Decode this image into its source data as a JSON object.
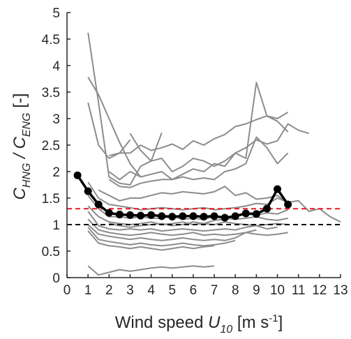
{
  "chart_data": {
    "type": "line",
    "title": "",
    "xlabel": {
      "main": "Wind speed ",
      "var": "U",
      "sub": "10",
      "unit": " [m s",
      "sup": "-1",
      "close": "]"
    },
    "ylabel": {
      "c1": "C",
      "s1": "HNG",
      "mid": " / C",
      "s2": "ENG",
      "unit": " [-]"
    },
    "xlim": [
      0,
      13
    ],
    "ylim": [
      0,
      5
    ],
    "xticks": [
      0,
      1,
      2,
      3,
      4,
      5,
      6,
      7,
      8,
      9,
      10,
      11,
      12,
      13
    ],
    "yticks": [
      0,
      0.5,
      1,
      1.5,
      2,
      2.5,
      3,
      3.5,
      4,
      4.5,
      5
    ],
    "ytick_labels": [
      "0",
      "0.5",
      "1",
      "1.5",
      "2",
      "2.5",
      "3",
      "3.5",
      "4",
      "4.5",
      "5"
    ],
    "grid": false,
    "legend": "none",
    "colors": {
      "individual": "#8c8c8c",
      "mean": "#000000",
      "ref_red": "#e8191f",
      "ref_black": "#000000",
      "axis": "#262626"
    },
    "reference_lines": [
      {
        "name": "",
        "y": 1.3,
        "style": "dashed",
        "color": "#e8191f"
      },
      {
        "name": "",
        "y": 1.0,
        "style": "dashed",
        "color": "#000000"
      }
    ],
    "mean_series": {
      "name": "",
      "x": [
        0.5,
        1,
        1.5,
        2,
        2.5,
        3,
        3.5,
        4,
        4.5,
        5,
        5.5,
        6,
        6.5,
        7,
        7.5,
        8,
        8.5,
        9,
        9.5,
        10,
        10.5
      ],
      "y": [
        1.93,
        1.63,
        1.38,
        1.22,
        1.19,
        1.18,
        1.17,
        1.18,
        1.16,
        1.15,
        1.16,
        1.16,
        1.15,
        1.16,
        1.13,
        1.16,
        1.21,
        1.2,
        1.3,
        1.67,
        1.38
      ]
    },
    "series": [
      {
        "x": [
          1,
          1.5,
          2,
          2.5,
          3,
          3.5,
          4,
          4.5
        ],
        "y": [
          4.62,
          3.3,
          1.9,
          1.78,
          1.75,
          2.1,
          2.2,
          2.73
        ]
      },
      {
        "x": [
          1,
          1.5,
          2,
          2.5,
          3,
          3.5
        ],
        "y": [
          3.78,
          3.45,
          3.0,
          2.55,
          2.15,
          1.9
        ]
      },
      {
        "x": [
          1,
          1.5,
          2,
          2.5,
          3
        ],
        "y": [
          3.3,
          2.5,
          2.25,
          2.35,
          2.6
        ]
      },
      {
        "x": [
          2,
          2.5,
          3,
          3.5,
          4,
          4.5,
          5,
          5.5,
          6,
          6.5,
          7,
          7.5,
          8,
          8.5,
          9,
          9.5,
          10,
          10.5
        ],
        "y": [
          2.3,
          2.35,
          2.35,
          2.5,
          2.4,
          2.45,
          2.52,
          2.42,
          2.58,
          2.5,
          2.62,
          2.7,
          2.85,
          2.9,
          2.98,
          3.05,
          2.95,
          2.75
        ]
      },
      {
        "x": [
          3,
          3.5,
          4,
          4.5,
          5,
          5.5,
          6,
          6.5,
          7,
          7.5,
          8,
          8.5,
          9,
          9.5,
          10,
          10.5,
          11,
          11.5
        ],
        "y": [
          2.72,
          2.4,
          2.2,
          2.25,
          2.0,
          2.1,
          2.25,
          2.2,
          2.1,
          2.2,
          2.35,
          2.45,
          2.6,
          2.52,
          2.58,
          2.9,
          2.78,
          2.72
        ]
      },
      {
        "x": [
          2,
          2.5,
          3,
          3.5,
          4,
          4.5,
          5,
          5.5,
          6,
          6.5,
          7,
          7.5,
          8,
          8.5,
          9,
          9.5,
          10,
          10.5
        ],
        "y": [
          2.0,
          1.85,
          2.0,
          1.9,
          1.95,
          2.0,
          1.85,
          1.95,
          2.05,
          2.0,
          2.15,
          2.1,
          2.35,
          2.25,
          3.68,
          3.05,
          3.0,
          3.12
        ]
      },
      {
        "x": [
          2,
          2.5,
          3,
          3.5,
          4,
          4.5,
          5,
          5.5,
          6,
          6.5,
          7,
          7.5,
          8,
          8.5,
          9,
          9.5,
          10,
          10.5
        ],
        "y": [
          1.85,
          1.72,
          1.7,
          1.78,
          1.82,
          1.85,
          1.85,
          1.9,
          1.85,
          1.88,
          1.85,
          2.0,
          2.05,
          2.15,
          2.65,
          2.45,
          2.15,
          2.35
        ]
      },
      {
        "x": [
          1.5,
          2,
          2.5,
          3,
          3.5,
          4,
          4.5,
          5,
          5.5,
          6,
          6.5,
          7,
          7.5,
          8,
          8.5,
          9,
          9.5,
          10,
          10.5
        ],
        "y": [
          1.65,
          1.55,
          1.45,
          1.5,
          1.5,
          1.55,
          1.6,
          1.58,
          1.62,
          1.6,
          1.58,
          1.62,
          1.72,
          1.55,
          1.6,
          1.48,
          1.5,
          1.55,
          1.4
        ]
      },
      {
        "x": [
          1,
          1.5,
          2,
          2.5,
          3,
          3.5,
          4,
          4.5,
          5,
          5.5,
          6,
          6.5,
          7,
          7.5,
          8,
          8.5,
          9,
          9.5,
          10,
          10.5,
          11,
          11.5,
          12,
          12.5,
          13
        ],
        "y": [
          1.8,
          1.5,
          1.38,
          1.35,
          1.32,
          1.28,
          1.3,
          1.32,
          1.3,
          1.28,
          1.3,
          1.32,
          1.28,
          1.3,
          1.32,
          1.35,
          1.4,
          1.38,
          1.5,
          1.42,
          1.45,
          1.25,
          1.3,
          1.15,
          1.05
        ]
      },
      {
        "x": [
          1,
          1.5,
          2,
          2.5,
          3,
          3.5,
          4,
          4.5,
          5,
          5.5,
          6,
          6.5,
          7,
          7.5,
          8,
          8.5,
          9,
          9.5,
          10,
          10.5
        ],
        "y": [
          1.55,
          1.3,
          1.15,
          1.15,
          1.12,
          1.15,
          1.12,
          1.12,
          1.15,
          1.1,
          1.12,
          1.1,
          1.15,
          1.12,
          1.1,
          1.12,
          1.15,
          1.1,
          1.08,
          1.12
        ]
      },
      {
        "x": [
          1,
          1.5,
          2,
          2.5,
          3,
          3.5,
          4,
          4.5,
          5,
          5.5,
          6,
          6.5,
          7,
          7.5,
          8,
          8.5,
          9,
          9.5,
          10,
          10.5
        ],
        "y": [
          1.35,
          1.15,
          1.05,
          1.02,
          1.0,
          1.02,
          1.05,
          1.0,
          1.02,
          1.05,
          1.0,
          1.02,
          1.0,
          1.05,
          1.02,
          1.0,
          0.98,
          1.0,
          1.02,
          1.0
        ]
      },
      {
        "x": [
          1,
          1.5,
          2,
          2.5,
          3,
          3.5,
          4,
          4.5,
          5,
          5.5,
          6,
          6.5,
          7,
          7.5,
          8,
          8.5,
          9,
          9.5,
          10
        ],
        "y": [
          1.25,
          0.98,
          0.92,
          0.9,
          0.92,
          0.9,
          0.92,
          0.88,
          0.9,
          0.92,
          0.9,
          0.88,
          0.9,
          0.92,
          0.9,
          0.95,
          0.98,
          0.92,
          0.95
        ]
      },
      {
        "x": [
          1,
          1.5,
          2,
          2.5,
          3,
          3.5,
          4,
          4.5,
          5,
          5.5,
          6,
          6.5,
          7,
          7.5,
          8,
          8.5,
          9,
          9.5,
          10,
          10.5
        ],
        "y": [
          1.1,
          0.9,
          0.85,
          0.82,
          0.8,
          0.82,
          0.85,
          0.82,
          0.8,
          0.82,
          0.85,
          0.8,
          0.82,
          0.8,
          0.82,
          0.85,
          0.82,
          0.8,
          0.82,
          0.85
        ]
      },
      {
        "x": [
          1,
          1.5,
          2,
          2.5,
          3,
          3.5,
          4,
          4.5,
          5,
          5.5,
          6,
          6.5,
          7,
          7.5,
          8,
          8.5,
          9
        ],
        "y": [
          1.0,
          0.82,
          0.78,
          0.75,
          0.72,
          0.75,
          0.72,
          0.7,
          0.72,
          0.75,
          0.72,
          0.7,
          0.72,
          0.7,
          0.75,
          0.85,
          0.9
        ]
      },
      {
        "x": [
          1,
          1.5,
          2,
          2.5,
          3,
          3.5,
          4,
          4.5,
          5,
          5.5,
          6,
          6.5,
          7,
          7.5,
          8
        ],
        "y": [
          0.95,
          0.72,
          0.68,
          0.65,
          0.62,
          0.65,
          0.62,
          0.6,
          0.62,
          0.65,
          0.62,
          0.6,
          0.62,
          0.65,
          0.7
        ]
      },
      {
        "x": [
          1,
          1.5,
          2,
          2.5,
          3,
          3.5,
          4,
          4.5,
          5,
          5.5,
          6,
          6.5,
          7
        ],
        "y": [
          0.88,
          0.65,
          0.6,
          0.58,
          0.55,
          0.58,
          0.55,
          0.52,
          0.55,
          0.58,
          0.55,
          0.58,
          0.6
        ]
      },
      {
        "x": [
          2,
          2.5,
          3,
          3.5,
          4,
          4.5,
          5,
          5.5,
          6,
          6.5,
          7,
          7.5,
          8,
          8.5,
          9,
          9.5,
          10,
          10.5
        ],
        "y": [
          1.02,
          0.98,
          0.95,
          0.98,
          1.0,
          1.02,
          0.98,
          1.0,
          1.05,
          1.02,
          1.08,
          1.1,
          1.15,
          1.2,
          1.18,
          1.22,
          1.2,
          1.28
        ]
      },
      {
        "x": [
          1,
          1.5,
          2,
          2.5,
          3,
          3.5,
          4,
          4.5,
          5,
          5.5,
          6,
          6.5,
          7
        ],
        "y": [
          0.22,
          0.05,
          0.1,
          0.15,
          0.12,
          0.15,
          0.18,
          0.2,
          0.18,
          0.2,
          0.22,
          0.2,
          0.22
        ]
      }
    ]
  }
}
